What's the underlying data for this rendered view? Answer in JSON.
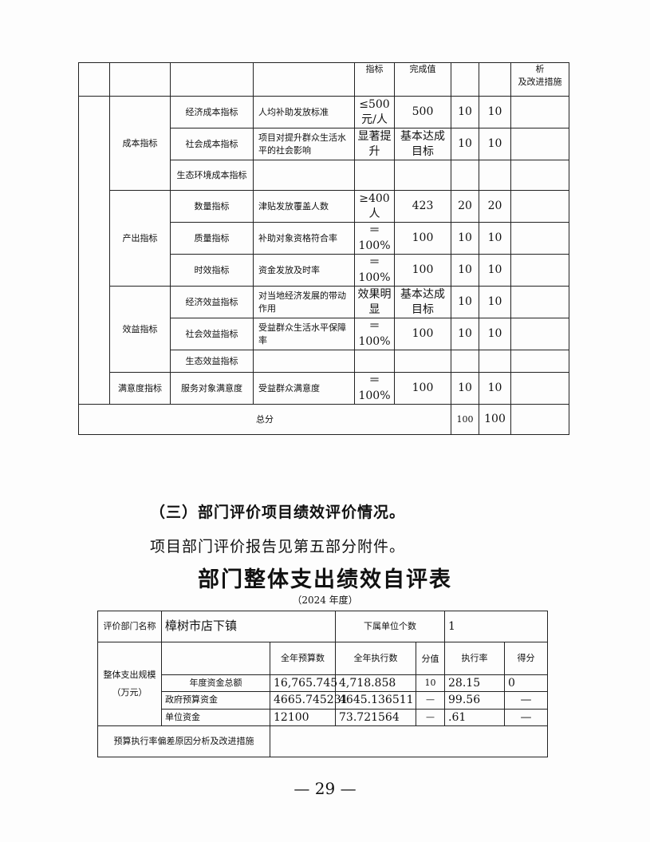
{
  "table1": {
    "header": [
      "",
      "",
      "",
      "",
      "指标",
      "完成值",
      "",
      "",
      "析\n及改进措施"
    ],
    "groups": [
      {
        "category": "成本指标",
        "rows": [
          {
            "sub": "经济成本指标",
            "indicator": "人均补助发放标准",
            "target": "≤500元/人",
            "actual": "500",
            "weight": "10",
            "score": "10"
          },
          {
            "sub": "社会成本指标",
            "indicator": "项目对提升群众生活水平的社会影响",
            "target": "显著提升",
            "actual": "基本达成目标",
            "weight": "10",
            "score": "10"
          },
          {
            "sub": "生态环境成本指标",
            "indicator": "",
            "target": "",
            "actual": "",
            "weight": "",
            "score": ""
          }
        ]
      },
      {
        "category": "产出指标",
        "rows": [
          {
            "sub": "数量指标",
            "indicator": "津贴发放覆盖人数",
            "target": "≥400人",
            "actual": "423",
            "weight": "20",
            "score": "20"
          },
          {
            "sub": "质量指标",
            "indicator": "补助对象资格符合率",
            "target": "＝100%",
            "actual": "100",
            "weight": "10",
            "score": "10"
          },
          {
            "sub": "时效指标",
            "indicator": "资金发放及时率",
            "target": "＝100%",
            "actual": "100",
            "weight": "10",
            "score": "10"
          }
        ]
      },
      {
        "category": "效益指标",
        "rows": [
          {
            "sub": "经济效益指标",
            "indicator": "对当地经济发展的带动作用",
            "target": "效果明显",
            "actual": "基本达成目标",
            "weight": "10",
            "score": "10"
          },
          {
            "sub": "社会效益指标",
            "indicator": "受益群众生活水平保障率",
            "target": "＝100%",
            "actual": "100",
            "weight": "10",
            "score": "10"
          },
          {
            "sub": "生态效益指标",
            "indicator": "",
            "target": "",
            "actual": "",
            "weight": "",
            "score": ""
          }
        ]
      },
      {
        "category": "满意度指标",
        "rows": [
          {
            "sub": "服务对象满意度",
            "indicator": "受益群众满意度",
            "target": "＝100%",
            "actual": "100",
            "weight": "10",
            "score": "10"
          }
        ]
      }
    ],
    "total": {
      "label": "总分",
      "weight": "100",
      "score": "100"
    }
  },
  "section": {
    "heading": "（三）部门评价项目绩效评价情况。",
    "text": "项目部门评价报告见第五部分附件。"
  },
  "table2": {
    "title": "部门整体支出绩效自评表",
    "year": "（2024 年度）",
    "dept_label": "评价部门名称",
    "dept_value": "樟树市店下镇",
    "sub_units_label": "下属单位个数",
    "sub_units_value": "1",
    "scale_label": "整体支出规模\n（万元）",
    "columns": [
      "全年预算数",
      "全年执行数",
      "分值",
      "执行率",
      "得分"
    ],
    "rows": [
      {
        "label": "年度资金总额",
        "budget": "16,765.745",
        "executed": "4,718.858",
        "points": "10",
        "rate": "28.15",
        "score": "0"
      },
      {
        "label": "政府预算资金",
        "budget": "4665.745231",
        "executed": "4645.136511",
        "points": "—",
        "rate": "99.56",
        "score": "—"
      },
      {
        "label": "单位资金",
        "budget": "12100",
        "executed": "73.721564",
        "points": "—",
        "rate": ".61",
        "score": "—"
      }
    ],
    "analysis_label": "预算执行率偏差原因分析及改进措施",
    "analysis_value": ""
  },
  "page_number": "— 29 —"
}
